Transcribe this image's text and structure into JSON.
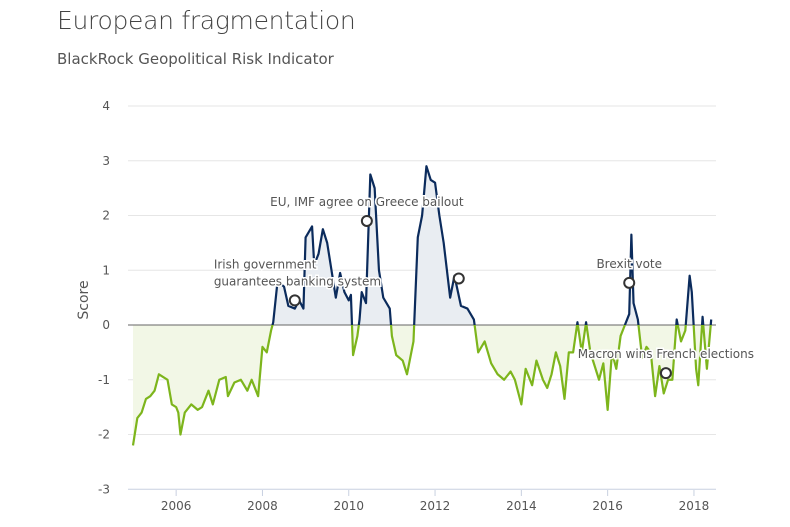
{
  "header": {
    "title": "European fragmentation",
    "subtitle": "BlackRock Geopolitical Risk Indicator"
  },
  "chart_data": {
    "type": "line",
    "title": "European fragmentation",
    "subtitle": "BlackRock Geopolitical Risk Indicator",
    "xlabel": "",
    "ylabel": "Score",
    "xlim": [
      2005.0,
      2018.5
    ],
    "ylim": [
      -3,
      4
    ],
    "x_ticks": [
      "2006",
      "2008",
      "2010",
      "2012",
      "2014",
      "2016",
      "2018"
    ],
    "y_ticks": [
      "4",
      "3",
      "2",
      "1",
      "0",
      "-1",
      "-2",
      "-3"
    ],
    "grid": true,
    "colors": {
      "above": "#0b2b5c",
      "below": "#7db51c",
      "fill_above": "#e9edf2",
      "fill_below": "#f2f7e6",
      "zero_line": "#666666"
    },
    "points": [
      [
        2005.0,
        -2.2
      ],
      [
        2005.1,
        -1.7
      ],
      [
        2005.2,
        -1.6
      ],
      [
        2005.3,
        -1.35
      ],
      [
        2005.4,
        -1.3
      ],
      [
        2005.5,
        -1.2
      ],
      [
        2005.6,
        -0.9
      ],
      [
        2005.7,
        -0.95
      ],
      [
        2005.8,
        -1.0
      ],
      [
        2005.9,
        -1.45
      ],
      [
        2006.0,
        -1.5
      ],
      [
        2006.05,
        -1.6
      ],
      [
        2006.1,
        -2.0
      ],
      [
        2006.2,
        -1.6
      ],
      [
        2006.35,
        -1.45
      ],
      [
        2006.5,
        -1.55
      ],
      [
        2006.6,
        -1.5
      ],
      [
        2006.75,
        -1.2
      ],
      [
        2006.85,
        -1.45
      ],
      [
        2007.0,
        -1.0
      ],
      [
        2007.15,
        -0.95
      ],
      [
        2007.2,
        -1.3
      ],
      [
        2007.35,
        -1.05
      ],
      [
        2007.5,
        -1.0
      ],
      [
        2007.65,
        -1.2
      ],
      [
        2007.75,
        -1.0
      ],
      [
        2007.9,
        -1.3
      ],
      [
        2008.0,
        -0.4
      ],
      [
        2008.1,
        -0.5
      ],
      [
        2008.2,
        -0.1
      ],
      [
        2008.25,
        0.05
      ],
      [
        2008.35,
        0.8
      ],
      [
        2008.5,
        0.7
      ],
      [
        2008.6,
        0.35
      ],
      [
        2008.75,
        0.3
      ],
      [
        2008.85,
        0.45
      ],
      [
        2008.95,
        0.3
      ],
      [
        2009.0,
        1.6
      ],
      [
        2009.15,
        1.8
      ],
      [
        2009.2,
        1.1
      ],
      [
        2009.3,
        1.3
      ],
      [
        2009.4,
        1.75
      ],
      [
        2009.5,
        1.5
      ],
      [
        2009.6,
        1.0
      ],
      [
        2009.7,
        0.5
      ],
      [
        2009.8,
        0.95
      ],
      [
        2009.9,
        0.6
      ],
      [
        2010.0,
        0.45
      ],
      [
        2010.05,
        0.55
      ],
      [
        2010.1,
        -0.55
      ],
      [
        2010.2,
        -0.2
      ],
      [
        2010.25,
        0.1
      ],
      [
        2010.3,
        0.6
      ],
      [
        2010.4,
        0.4
      ],
      [
        2010.5,
        2.75
      ],
      [
        2010.6,
        2.5
      ],
      [
        2010.7,
        1.0
      ],
      [
        2010.8,
        0.5
      ],
      [
        2010.95,
        0.3
      ],
      [
        2011.0,
        -0.2
      ],
      [
        2011.1,
        -0.55
      ],
      [
        2011.25,
        -0.65
      ],
      [
        2011.35,
        -0.9
      ],
      [
        2011.5,
        -0.3
      ],
      [
        2011.6,
        1.6
      ],
      [
        2011.7,
        2.0
      ],
      [
        2011.8,
        2.9
      ],
      [
        2011.9,
        2.65
      ],
      [
        2012.0,
        2.6
      ],
      [
        2012.1,
        2.0
      ],
      [
        2012.2,
        1.5
      ],
      [
        2012.35,
        0.5
      ],
      [
        2012.45,
        0.9
      ],
      [
        2012.6,
        0.35
      ],
      [
        2012.75,
        0.3
      ],
      [
        2012.9,
        0.1
      ],
      [
        2013.0,
        -0.5
      ],
      [
        2013.15,
        -0.3
      ],
      [
        2013.3,
        -0.7
      ],
      [
        2013.45,
        -0.9
      ],
      [
        2013.6,
        -1.0
      ],
      [
        2013.75,
        -0.85
      ],
      [
        2013.85,
        -1.0
      ],
      [
        2014.0,
        -1.45
      ],
      [
        2014.1,
        -0.8
      ],
      [
        2014.25,
        -1.1
      ],
      [
        2014.35,
        -0.65
      ],
      [
        2014.5,
        -1.0
      ],
      [
        2014.6,
        -1.15
      ],
      [
        2014.7,
        -0.9
      ],
      [
        2014.8,
        -0.5
      ],
      [
        2014.9,
        -0.75
      ],
      [
        2015.0,
        -1.35
      ],
      [
        2015.1,
        -0.5
      ],
      [
        2015.2,
        -0.5
      ],
      [
        2015.3,
        0.05
      ],
      [
        2015.4,
        -0.5
      ],
      [
        2015.5,
        0.05
      ],
      [
        2015.6,
        -0.5
      ],
      [
        2015.8,
        -1.0
      ],
      [
        2015.9,
        -0.7
      ],
      [
        2016.0,
        -1.55
      ],
      [
        2016.1,
        -0.5
      ],
      [
        2016.2,
        -0.8
      ],
      [
        2016.3,
        -0.2
      ],
      [
        2016.4,
        0.0
      ],
      [
        2016.5,
        0.2
      ],
      [
        2016.55,
        1.65
      ],
      [
        2016.6,
        0.4
      ],
      [
        2016.7,
        0.1
      ],
      [
        2016.8,
        -0.6
      ],
      [
        2016.9,
        -0.4
      ],
      [
        2017.0,
        -0.5
      ],
      [
        2017.1,
        -1.3
      ],
      [
        2017.2,
        -0.75
      ],
      [
        2017.3,
        -1.25
      ],
      [
        2017.4,
        -1.0
      ],
      [
        2017.5,
        -1.0
      ],
      [
        2017.6,
        0.1
      ],
      [
        2017.7,
        -0.3
      ],
      [
        2017.8,
        -0.1
      ],
      [
        2017.9,
        0.9
      ],
      [
        2017.95,
        0.6
      ],
      [
        2018.05,
        -0.8
      ],
      [
        2018.1,
        -1.1
      ],
      [
        2018.2,
        0.15
      ],
      [
        2018.3,
        -0.8
      ],
      [
        2018.4,
        0.1
      ]
    ],
    "annotations": [
      {
        "x": 2008.75,
        "y": 0.45,
        "label": [
          "Irish government",
          "guarantees banking system"
        ]
      },
      {
        "x": 2010.42,
        "y": 1.9,
        "label": [
          "EU, IMF agree on Greece bailout"
        ]
      },
      {
        "x": 2012.55,
        "y": 0.85,
        "label": []
      },
      {
        "x": 2016.5,
        "y": 0.77,
        "label": [
          "Brexit vote"
        ]
      },
      {
        "x": 2017.35,
        "y": -0.88,
        "label": [
          "Macron wins French elections"
        ]
      }
    ]
  }
}
